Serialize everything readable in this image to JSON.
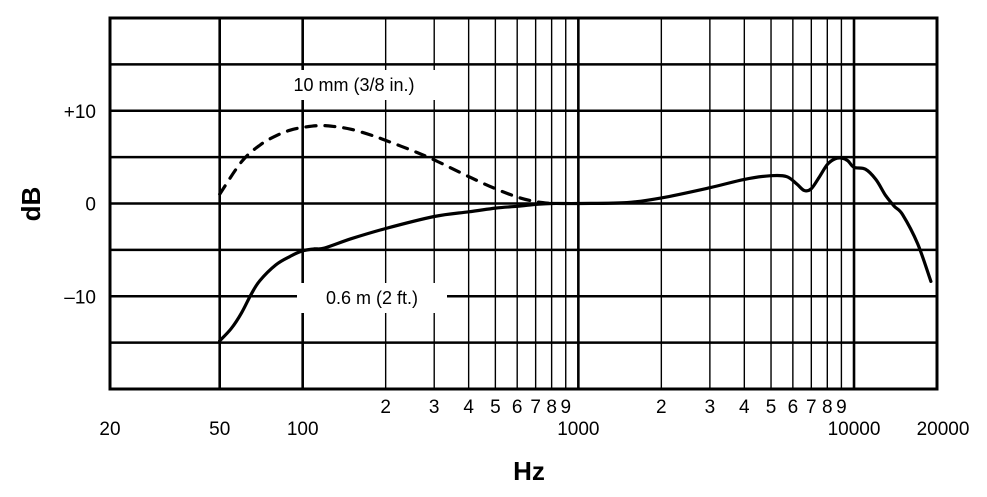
{
  "chart_data": {
    "type": "line",
    "title": "",
    "xlabel": "Hz",
    "ylabel": "dB",
    "x_scale": "log",
    "xlim": [
      20,
      20000
    ],
    "ylim": [
      -20,
      20
    ],
    "grid": true,
    "x_major_ticks": [
      {
        "value": 20,
        "label": "20"
      },
      {
        "value": 50,
        "label": "50"
      },
      {
        "value": 100,
        "label": "100"
      },
      {
        "value": 1000,
        "label": "1000"
      },
      {
        "value": 10000,
        "label": "10000"
      },
      {
        "value": 20000,
        "label": "20000"
      }
    ],
    "x_minor_ticks": [
      {
        "value": 200,
        "label": "2"
      },
      {
        "value": 300,
        "label": "3"
      },
      {
        "value": 400,
        "label": "4"
      },
      {
        "value": 500,
        "label": "5"
      },
      {
        "value": 600,
        "label": "6"
      },
      {
        "value": 700,
        "label": "7"
      },
      {
        "value": 800,
        "label": "8"
      },
      {
        "value": 900,
        "label": "9"
      },
      {
        "value": 2000,
        "label": "2"
      },
      {
        "value": 3000,
        "label": "3"
      },
      {
        "value": 4000,
        "label": "4"
      },
      {
        "value": 5000,
        "label": "5"
      },
      {
        "value": 6000,
        "label": "6"
      },
      {
        "value": 7000,
        "label": "7"
      },
      {
        "value": 8000,
        "label": "8"
      },
      {
        "value": 9000,
        "label": "9"
      }
    ],
    "y_gridlines": [
      -20,
      -15,
      -10,
      -5,
      0,
      5,
      10,
      15,
      20
    ],
    "y_ticks": [
      {
        "value": 10,
        "label": "+10"
      },
      {
        "value": 0,
        "label": "0"
      },
      {
        "value": -10,
        "label": "–10"
      }
    ],
    "series": [
      {
        "name": "10 mm (3/8 in.)",
        "style": "dashed",
        "color": "#000000",
        "x": [
          50,
          60,
          70,
          80,
          90,
          100,
          115,
          130,
          150,
          180,
          200,
          250,
          300,
          400,
          500,
          600,
          700,
          800
        ],
        "y": [
          1.0,
          4.5,
          6.3,
          7.3,
          7.9,
          8.2,
          8.4,
          8.3,
          8.0,
          7.3,
          6.8,
          5.7,
          4.7,
          2.9,
          1.6,
          0.7,
          0.2,
          0.0
        ]
      },
      {
        "name": "0.6 m (2 ft.)",
        "style": "solid",
        "color": "#000000",
        "x": [
          50,
          55,
          60,
          65,
          70,
          80,
          90,
          100,
          110,
          120,
          150,
          200,
          300,
          400,
          500,
          600,
          700,
          800,
          1000,
          1500,
          2000,
          3000,
          4000,
          5000,
          5700,
          6200,
          6600,
          7000,
          7500,
          8000,
          8500,
          9000,
          9500,
          10000,
          11000,
          12000,
          13000,
          14000,
          15000,
          17000,
          19000
        ],
        "y": [
          -14.8,
          -13.5,
          -11.8,
          -9.8,
          -8.3,
          -6.6,
          -5.7,
          -5.1,
          -4.9,
          -4.8,
          -3.8,
          -2.7,
          -1.4,
          -0.9,
          -0.5,
          -0.3,
          -0.1,
          0.0,
          0.0,
          0.1,
          0.6,
          1.7,
          2.6,
          3.0,
          2.9,
          2.1,
          1.4,
          1.6,
          2.9,
          4.2,
          4.8,
          4.9,
          4.6,
          3.9,
          3.7,
          2.6,
          0.9,
          -0.3,
          -1.2,
          -4.3,
          -8.4
        ]
      }
    ],
    "annotations": [
      {
        "text": "10 mm (3/8 in.)",
        "series": 0
      },
      {
        "text": "0.6 m (2 ft.)",
        "series": 1
      }
    ]
  }
}
